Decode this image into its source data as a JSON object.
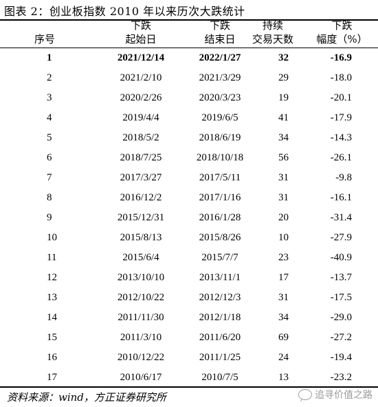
{
  "title": "图表 2：创业板指数 2010 年以来历次大跌统计",
  "headers": {
    "seq": "序号",
    "start_top": "下跌",
    "start_bottom": "起始日",
    "end_top": "下跌",
    "end_bottom": "结束日",
    "days_top": "持续",
    "days_bottom": "交易天数",
    "pct_top": "下跌",
    "pct_bottom": "幅度（%）"
  },
  "rows": [
    [
      "1",
      "2021/12/14",
      "2022/1/27",
      "32",
      "-16.9"
    ],
    [
      "2",
      "2021/2/10",
      "2021/3/29",
      "29",
      "-18.0"
    ],
    [
      "3",
      "2020/2/26",
      "2020/3/23",
      "19",
      "-20.1"
    ],
    [
      "4",
      "2019/4/4",
      "2019/6/5",
      "41",
      "-17.9"
    ],
    [
      "5",
      "2018/5/2",
      "2018/6/19",
      "34",
      "-14.3"
    ],
    [
      "6",
      "2018/7/25",
      "2018/10/18",
      "56",
      "-26.1"
    ],
    [
      "7",
      "2017/3/27",
      "2017/5/11",
      "31",
      "-9.8"
    ],
    [
      "8",
      "2016/12/2",
      "2017/1/16",
      "31",
      "-16.1"
    ],
    [
      "9",
      "2015/12/31",
      "2016/1/28",
      "20",
      "-31.4"
    ],
    [
      "10",
      "2015/8/13",
      "2015/8/26",
      "10",
      "-27.9"
    ],
    [
      "11",
      "2015/6/4",
      "2015/7/7",
      "23",
      "-40.9"
    ],
    [
      "12",
      "2013/10/10",
      "2013/11/1",
      "17",
      "-13.7"
    ],
    [
      "13",
      "2012/10/22",
      "2012/12/3",
      "31",
      "-17.5"
    ],
    [
      "14",
      "2011/11/30",
      "2012/1/18",
      "34",
      "-29.0"
    ],
    [
      "15",
      "2011/3/10",
      "2011/6/20",
      "69",
      "-27.2"
    ],
    [
      "16",
      "2010/12/22",
      "2011/1/25",
      "24",
      "-19.4"
    ],
    [
      "17",
      "2010/6/17",
      "2010/7/5",
      "13",
      "-23.2"
    ]
  ],
  "source": "资料来源：wind，方正证券研究所",
  "watermark": "追寻价值之路",
  "icons": {
    "watermark": "wechat-icon"
  }
}
